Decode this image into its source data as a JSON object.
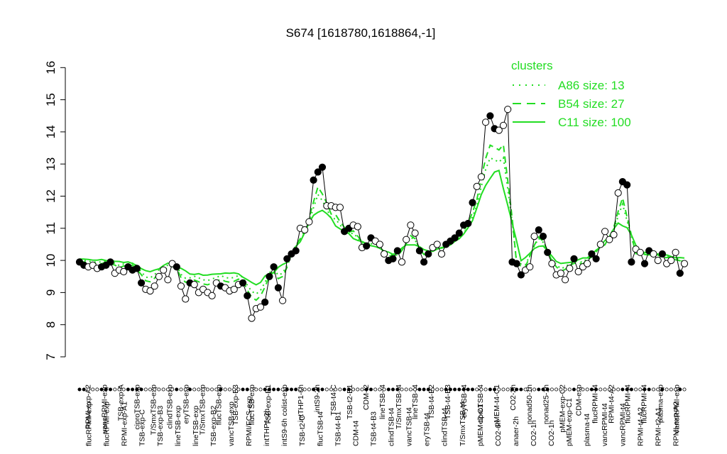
{
  "chart_data": {
    "type": "line",
    "title": "S674 [1618780,1618864,-1]",
    "xlabel": "",
    "ylabel": "",
    "ylim": [
      7,
      16
    ],
    "yticks": [
      7,
      8,
      9,
      10,
      11,
      12,
      13,
      14,
      15,
      16
    ],
    "grid": false,
    "legend": {
      "title": "clusters",
      "placement": "top-right",
      "color": "#22dd22",
      "entries": [
        {
          "label": "A86 size: 13",
          "style": "dotted"
        },
        {
          "label": "B54 size: 27",
          "style": "dashed"
        },
        {
          "label": "C11 size: 100",
          "style": "solid"
        }
      ]
    },
    "top_labels": [
      "RPMI-exp-A2",
      "vancRPMI-exp",
      "TSB-exp-A",
      "ciproTSB-exp",
      "T/SmxTSB-exp",
      "clindTSB-exp",
      "eryTSB-exp",
      "T/SmxTSB-exp",
      "flucTSB-exp",
      "TSB-exp-B3",
      "flucTSB-exp",
      "TSB-exp-B1",
      "colist-exp",
      "intTHP1-6h",
      "intS9-2h",
      "TSB-t4-C",
      "TSB-t2-B1",
      "CDM-t2",
      "lineTSB-t4",
      "T/SmxTSB-t4",
      "lineTSB-t4",
      "TSB-t4-B2",
      "TSB-t4-B3",
      "eryTSB-t4",
      "ciproTSB-t4",
      "pMEM-t4-C1",
      "CO2-2h",
      "nonad50-1h",
      "nonad25-1h",
      "pMEM-exp-C2",
      "CDM-exp",
      "flucRPMI-t4",
      "RPMI-t4-A2",
      "flucRPMI-t4",
      "flucRPMI-t4",
      "plasma-exp",
      "vancRPMI-exp"
    ],
    "bottom_labels": [
      "flucRPMI-exp",
      "flucRPMI-exp",
      "RPMI-exp-A1",
      "TSB-exp-C",
      "TSB-exp-B3",
      "lineTSB-exp",
      "lineTSB-exp",
      "TSB-exp-B2",
      "vancTSB-exp",
      "RPMI/FCS-exp",
      "intTHP1-2h",
      "intS9-6h",
      "TSB-t2-C",
      "flucTSB-t4",
      "TSB-t4-B1",
      "CDM-t4",
      "TSB-t4-B3",
      "clindTSB-t4",
      "vancTSB-t4",
      "eryTSB-t4",
      "clindTSB-t4",
      "T/SmxTSB-t4",
      "pMEM-t2-C1",
      "CO2-6h",
      "anaer-2h",
      "CO2-1h",
      "CO2-1h",
      "pMEM-exp-C1",
      "plasma-t4",
      "vancRPMI-t4",
      "vancRPMI-t4",
      "RPMI-t4-A2",
      "RPMI-t2-A1",
      "RPMI-exp-A2"
    ],
    "sample_values": [
      9.95,
      9.85,
      9.8,
      9.85,
      9.75,
      9.8,
      9.85,
      9.95,
      9.6,
      9.7,
      9.65,
      9.8,
      9.7,
      9.75,
      9.3,
      9.1,
      9.05,
      9.2,
      9.5,
      9.7,
      9.4,
      9.9,
      9.8,
      9.2,
      8.8,
      9.3,
      9.25,
      9.0,
      9.1,
      9.0,
      8.9,
      9.3,
      9.2,
      9.15,
      9.05,
      9.1,
      9.25,
      9.3,
      8.9,
      8.2,
      8.5,
      8.55,
      8.7,
      9.5,
      9.8,
      9.15,
      8.75,
      10.05,
      10.2,
      10.3,
      11.0,
      10.95,
      11.2,
      12.5,
      12.75,
      12.9,
      11.7,
      11.7,
      11.65,
      11.65,
      10.9,
      11.0,
      11.1,
      11.05,
      10.4,
      10.45,
      10.7,
      10.6,
      10.5,
      10.2,
      10.0,
      10.05,
      10.3,
      9.95,
      10.65,
      11.1,
      10.85,
      10.3,
      9.95,
      10.2,
      10.4,
      10.5,
      10.2,
      10.5,
      10.6,
      10.7,
      10.85,
      11.1,
      11.15,
      11.8,
      12.3,
      12.6,
      14.3,
      14.5,
      14.1,
      14.05,
      14.2,
      14.7,
      9.95,
      9.9,
      9.55,
      9.7,
      9.8,
      10.75,
      10.95,
      10.75,
      10.25,
      9.9,
      9.55,
      9.6,
      9.4,
      9.75,
      10.05,
      9.65,
      9.8,
      9.9,
      10.2,
      10.05,
      10.5,
      10.9,
      10.65,
      10.8,
      12.1,
      12.45,
      12.35,
      9.95,
      10.35,
      10.25,
      9.9,
      10.3,
      10.2,
      10.0,
      10.2,
      9.9,
      10.0,
      10.25,
      9.6,
      9.9
    ],
    "open_marker_indices": [
      2,
      3,
      4,
      8,
      9,
      10,
      15,
      16,
      17,
      18,
      19,
      20,
      21,
      23,
      24,
      26,
      27,
      28,
      29,
      30,
      31,
      33,
      34,
      35,
      36,
      39,
      40,
      41,
      46,
      50,
      51,
      52,
      56,
      57,
      58,
      59,
      62,
      63,
      64,
      67,
      68,
      69,
      73,
      74,
      75,
      76,
      80,
      81,
      82,
      90,
      91,
      92,
      95,
      96,
      97,
      101,
      102,
      103,
      107,
      108,
      109,
      110,
      111,
      113,
      114,
      115,
      118,
      119,
      120,
      121,
      122,
      126,
      127,
      130,
      131,
      133,
      134,
      135,
      137
    ]
  }
}
